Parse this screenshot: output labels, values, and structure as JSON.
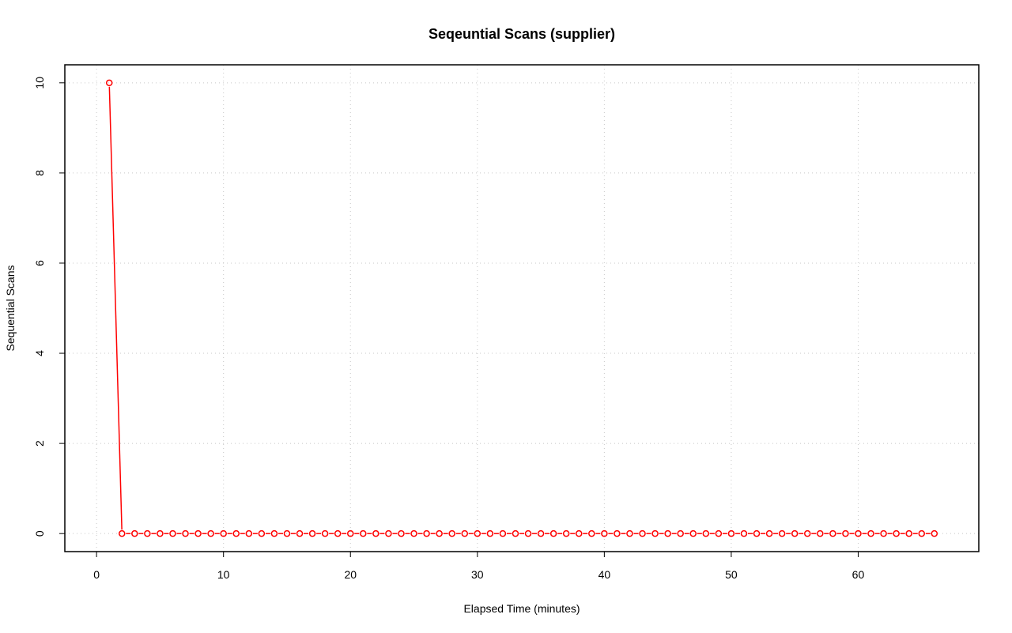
{
  "chart_data": {
    "type": "line",
    "title": "Seqeuntial Scans (supplier)",
    "xlabel": "Elapsed Time (minutes)",
    "ylabel": "Sequential Scans",
    "xlim": [
      -2.5,
      69.5
    ],
    "ylim": [
      -0.4,
      10.4
    ],
    "x_ticks": [
      0,
      10,
      20,
      30,
      40,
      50,
      60
    ],
    "y_ticks": [
      0,
      2,
      4,
      6,
      8,
      10
    ],
    "grid": true,
    "color": "#ff0000",
    "markers": "open-circle",
    "series": [
      {
        "x": [
          1,
          2,
          3,
          4,
          5,
          6,
          7,
          8,
          9,
          10,
          11,
          12,
          13,
          14,
          15,
          16,
          17,
          18,
          19,
          20,
          21,
          22,
          23,
          24,
          25,
          26,
          27,
          28,
          29,
          30,
          31,
          32,
          33,
          34,
          35,
          36,
          37,
          38,
          39,
          40,
          41,
          42,
          43,
          44,
          45,
          46,
          47,
          48,
          49,
          50,
          51,
          52,
          53,
          54,
          55,
          56,
          57,
          58,
          59,
          60,
          61,
          62,
          63,
          64,
          65,
          66
        ],
        "y": [
          10,
          0,
          0,
          0,
          0,
          0,
          0,
          0,
          0,
          0,
          0,
          0,
          0,
          0,
          0,
          0,
          0,
          0,
          0,
          0,
          0,
          0,
          0,
          0,
          0,
          0,
          0,
          0,
          0,
          0,
          0,
          0,
          0,
          0,
          0,
          0,
          0,
          0,
          0,
          0,
          0,
          0,
          0,
          0,
          0,
          0,
          0,
          0,
          0,
          0,
          0,
          0,
          0,
          0,
          0,
          0,
          0,
          0,
          0,
          0,
          0,
          0,
          0,
          0,
          0,
          0
        ]
      }
    ]
  }
}
